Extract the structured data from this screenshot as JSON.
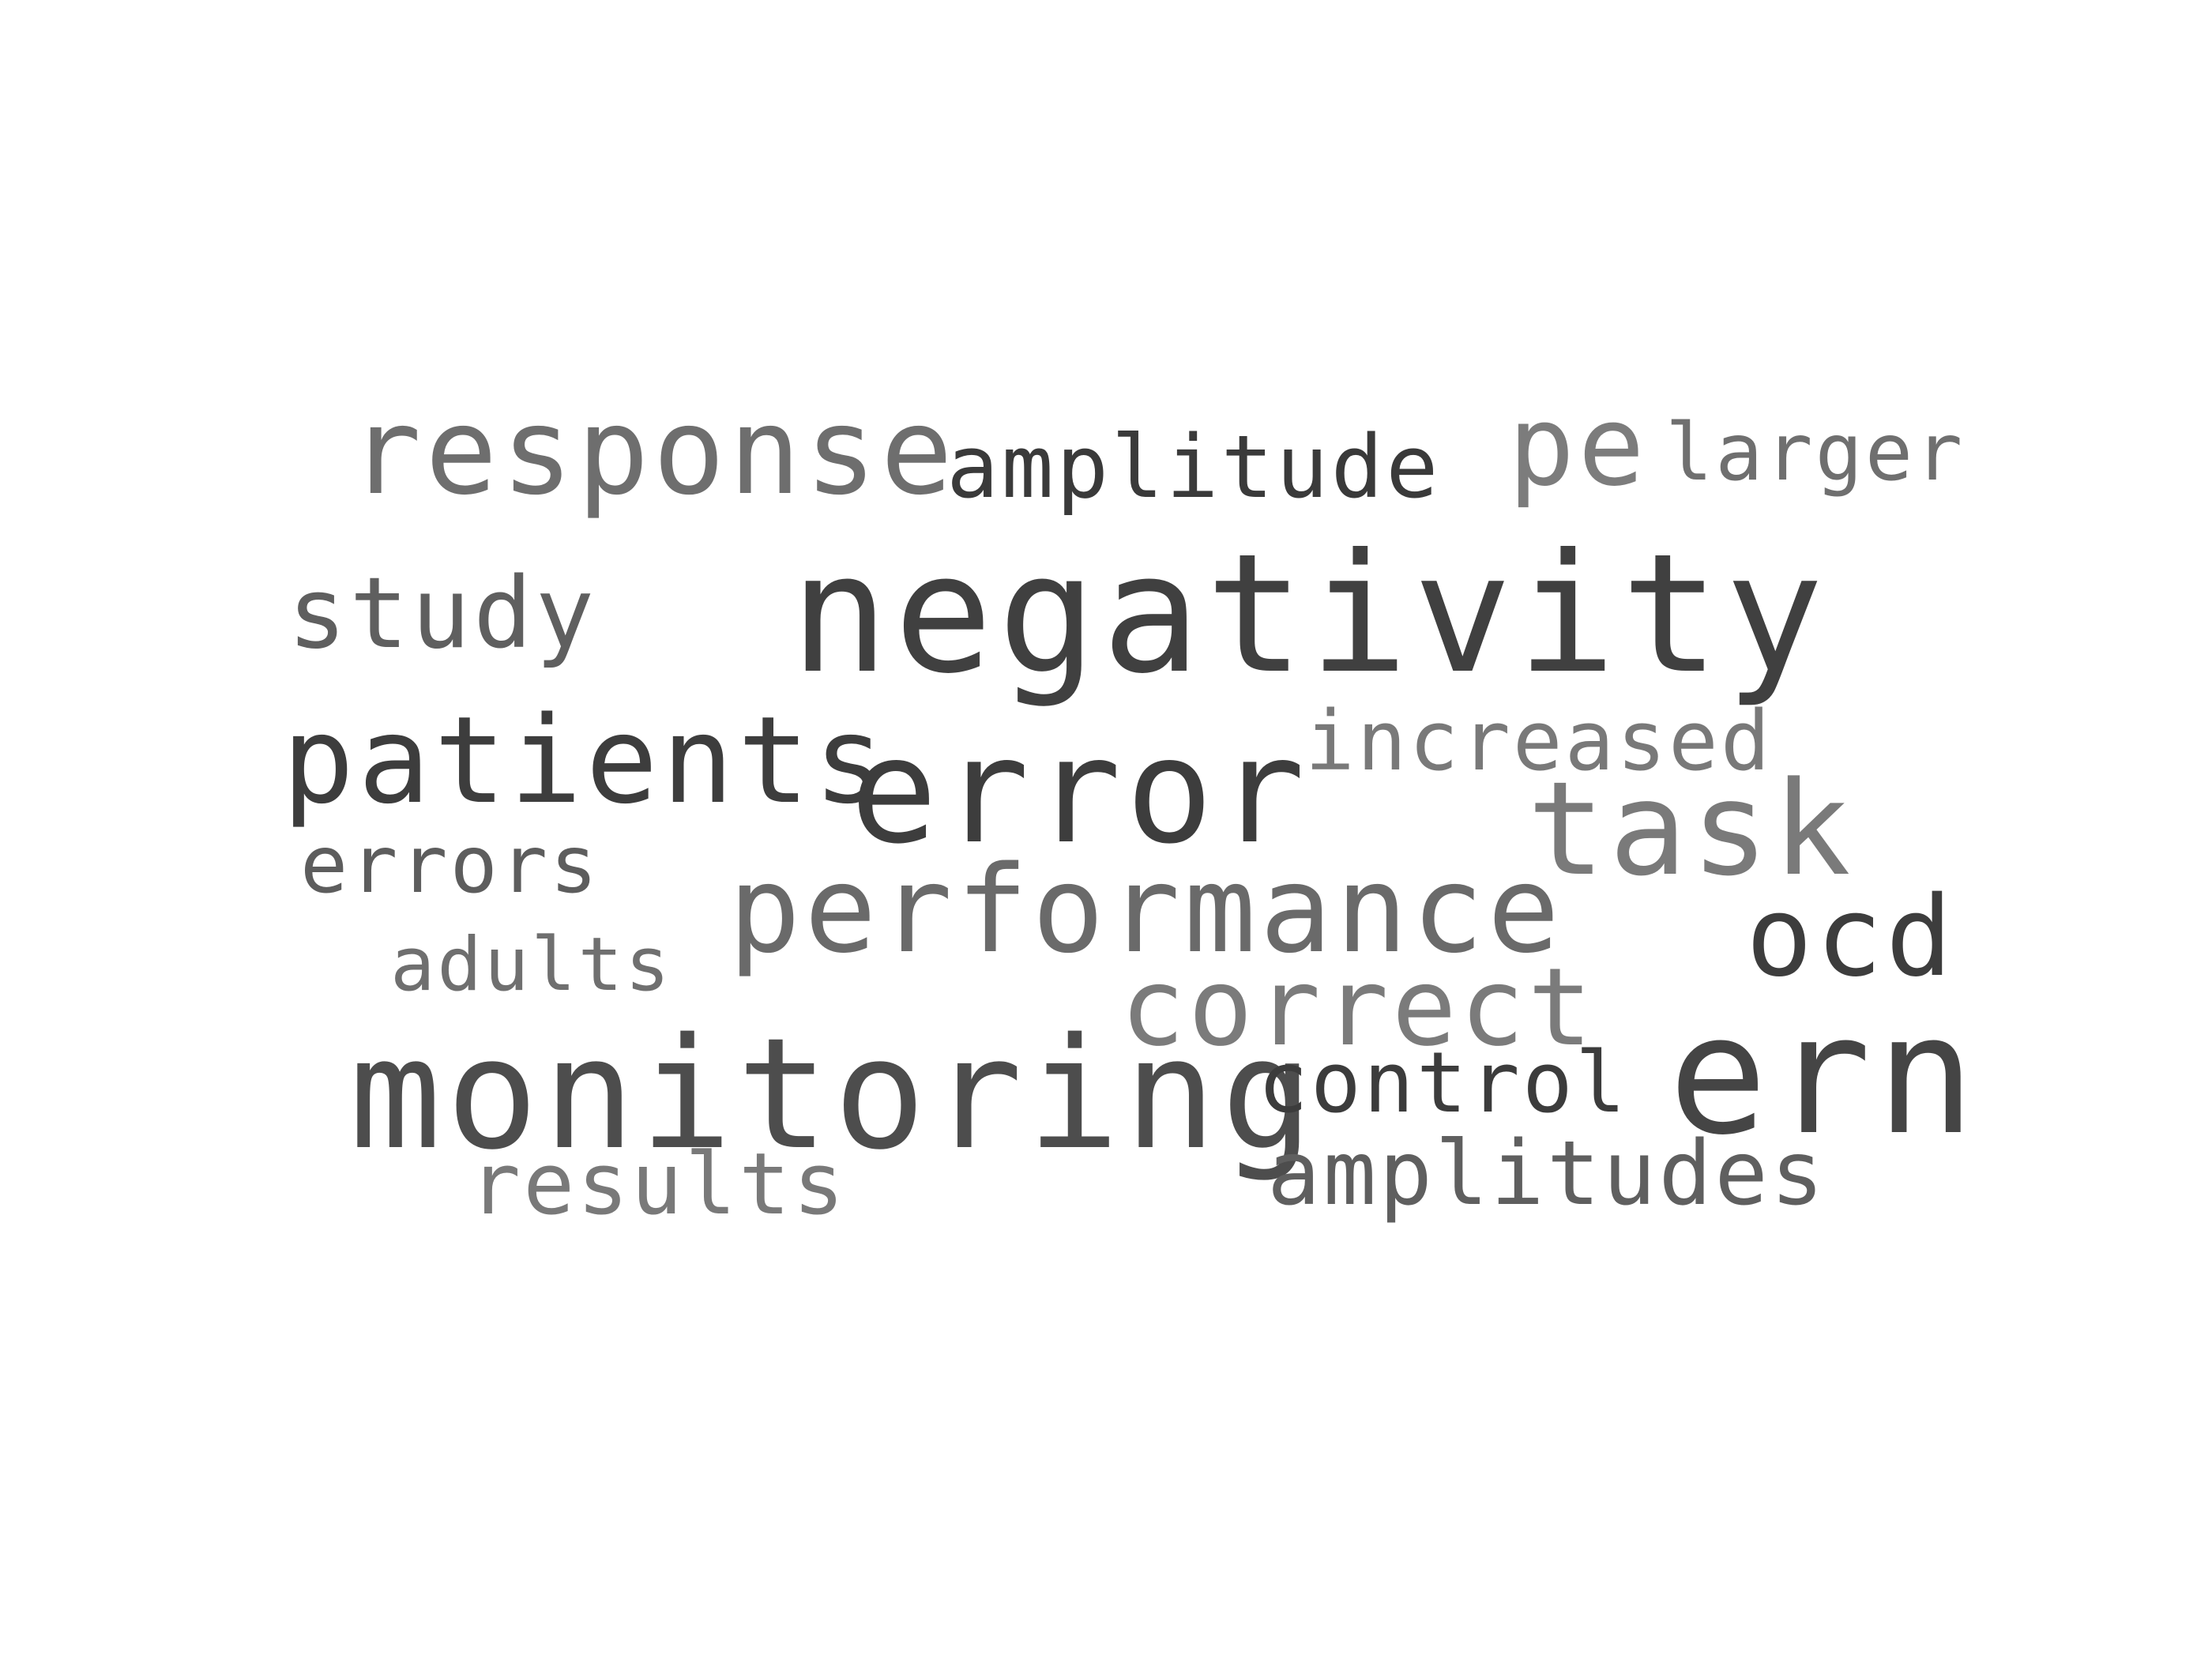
{
  "word_cloud": {
    "words": [
      {
        "key": "response",
        "text": "response",
        "color": "#6e6e6e"
      },
      {
        "key": "amplitude",
        "text": "amplitude",
        "color": "#3a3a3a"
      },
      {
        "key": "pe",
        "text": "pe",
        "color": "#7c7c7c"
      },
      {
        "key": "larger",
        "text": "larger",
        "color": "#6f6f6f"
      },
      {
        "key": "study",
        "text": "study",
        "color": "#5f5f5f"
      },
      {
        "key": "negativity",
        "text": "negativity",
        "color": "#404040"
      },
      {
        "key": "patients",
        "text": "patients",
        "color": "#3d3d3d"
      },
      {
        "key": "error",
        "text": "error",
        "color": "#3d3d3d"
      },
      {
        "key": "increased",
        "text": "increased",
        "color": "#797979"
      },
      {
        "key": "task",
        "text": "task",
        "color": "#7a7a7a"
      },
      {
        "key": "errors",
        "text": "errors",
        "color": "#5d5d5d"
      },
      {
        "key": "performance",
        "text": "performance",
        "color": "#6a6a6a"
      },
      {
        "key": "ocd",
        "text": "ocd",
        "color": "#3d3d3d"
      },
      {
        "key": "adults",
        "text": "adults",
        "color": "#6f6f6f"
      },
      {
        "key": "correct",
        "text": "correct",
        "color": "#7b7b7b"
      },
      {
        "key": "monitoring",
        "text": "monitoring",
        "color": "#4d4d4d"
      },
      {
        "key": "control",
        "text": "control",
        "color": "#3c3c3c"
      },
      {
        "key": "ern",
        "text": "ern",
        "color": "#454545"
      },
      {
        "key": "results",
        "text": "results",
        "color": "#797979"
      },
      {
        "key": "amplitudes",
        "text": "amplitudes",
        "color": "#5f5f5f"
      }
    ]
  }
}
